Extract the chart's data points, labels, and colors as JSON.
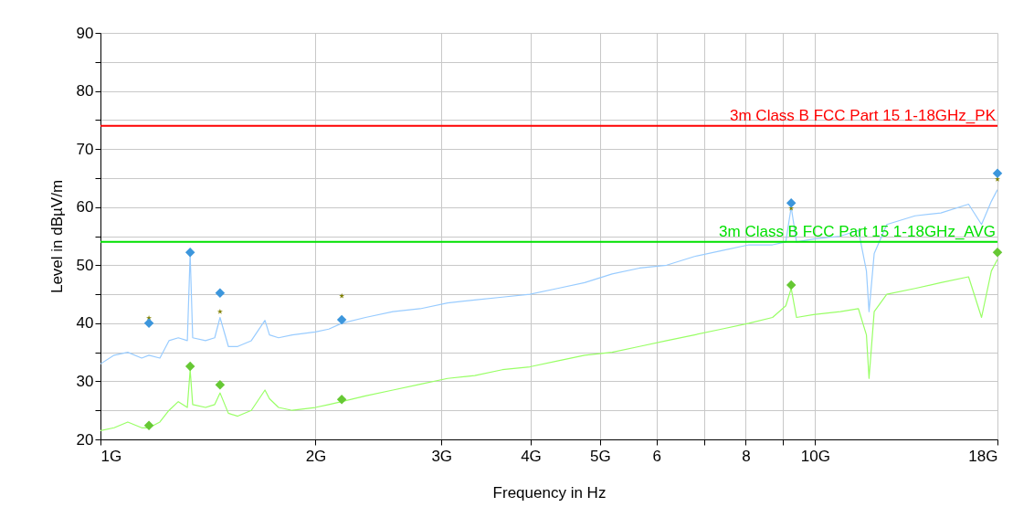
{
  "chart_data": {
    "type": "line",
    "xlabel": "Frequency in Hz",
    "ylabel": "Level in dBµV/m",
    "log": "x",
    "grid": true,
    "xlim": [
      1,
      18
    ],
    "ylim": [
      20,
      90
    ],
    "xticks": [
      {
        "value": 1,
        "label": "1G"
      },
      {
        "value": 2,
        "label": "2G"
      },
      {
        "value": 3,
        "label": "3G"
      },
      {
        "value": 4,
        "label": "4G"
      },
      {
        "value": 5,
        "label": "5G"
      },
      6,
      {
        "value": 7,
        "label": null
      },
      8,
      {
        "value": 9,
        "label": null
      },
      {
        "value": 10,
        "label": "10G"
      },
      {
        "value": 18,
        "label": "18G"
      }
    ],
    "yticks": [
      20,
      {
        "value": 25,
        "label": null
      },
      30,
      {
        "value": 35,
        "label": null
      },
      40,
      {
        "value": 45,
        "label": null
      },
      50,
      {
        "value": 55,
        "label": null
      },
      60,
      {
        "value": 65,
        "label": null
      },
      70,
      {
        "value": 75,
        "label": null
      },
      80,
      {
        "value": 85,
        "label": null
      },
      90
    ],
    "x": [
      1.0,
      1.045,
      1.092,
      1.142,
      1.169,
      1.211,
      1.247,
      1.285,
      1.323,
      1.335,
      1.346,
      1.403,
      1.445,
      1.47,
      1.51,
      1.556,
      1.626,
      1.699,
      1.724,
      1.775,
      1.855,
      1.998,
      2.087,
      2.176,
      2.349,
      2.566,
      2.801,
      3.06,
      3.34,
      3.65,
      3.99,
      4.36,
      4.76,
      5.2,
      5.68,
      6.2,
      6.78,
      7.4,
      8.08,
      8.72,
      9.1,
      9.26,
      9.42,
      9.95,
      10.85,
      11.5,
      11.8,
      11.9,
      12.1,
      12.6,
      13.8,
      15.0,
      16.4,
      17.1,
      17.65,
      18
    ],
    "series": [
      {
        "color": "#99ccff",
        "values": [
          33,
          34.5,
          35,
          34,
          34.5,
          34,
          37,
          37.5,
          37,
          52,
          37.5,
          37,
          37.5,
          41,
          36,
          36,
          37,
          40.5,
          38,
          37.5,
          38,
          38.5,
          39,
          40,
          41,
          42,
          42.5,
          43.5,
          44,
          44.5,
          45,
          46,
          47,
          48.5,
          49.5,
          50,
          51.5,
          52.5,
          53.5,
          53.5,
          54,
          60,
          54,
          54.5,
          55,
          56,
          49,
          42,
          52,
          57,
          58.5,
          59,
          60.5,
          57,
          61,
          63
        ]
      },
      {
        "color": "#99ff66",
        "values": [
          21.5,
          22,
          23,
          22,
          22,
          23,
          25,
          26.5,
          25.5,
          32,
          26,
          25.5,
          26,
          28,
          24.5,
          24,
          25,
          28.5,
          27,
          25.5,
          25,
          25.5,
          26,
          26.5,
          27.5,
          28.5,
          29.5,
          30.5,
          31,
          32,
          32.5,
          33.5,
          34.5,
          35,
          36,
          37,
          38,
          39,
          40,
          41,
          43,
          46,
          41,
          41.5,
          42,
          42.5,
          38,
          30.5,
          42,
          45,
          46,
          47,
          48,
          41,
          49,
          51
        ]
      },
      {
        "type": "scatter",
        "marker": "star",
        "color": "#808000",
        "x": [
          1.169,
          1.47,
          2.176,
          9.26,
          18
        ],
        "values": [
          40.9,
          42,
          44.7,
          59.8,
          64.8
        ]
      },
      {
        "type": "scatter",
        "marker": "diamond",
        "color": "#3c96dc",
        "x": [
          1.169,
          1.335,
          1.47,
          2.176,
          9.26,
          18
        ],
        "values": [
          40,
          52.2,
          45.2,
          40.6,
          60.7,
          65.8
        ]
      },
      {
        "type": "scatter",
        "marker": "diamond",
        "color": "#66c834",
        "x": [
          1.169,
          1.335,
          1.47,
          2.176,
          9.26,
          18
        ],
        "values": [
          22.4,
          32.6,
          29.4,
          26.9,
          46.6,
          52.2
        ]
      }
    ],
    "ref_lines": [
      {
        "axis": "y",
        "value": 74,
        "label": "3m Class B FCC Part 15 1-18GHz_PK",
        "color": "#ff0000"
      },
      {
        "axis": "y",
        "value": 54,
        "label": "3m Class B FCC Part 15 1-18GHz_AVG",
        "color": "#00e000"
      }
    ]
  }
}
